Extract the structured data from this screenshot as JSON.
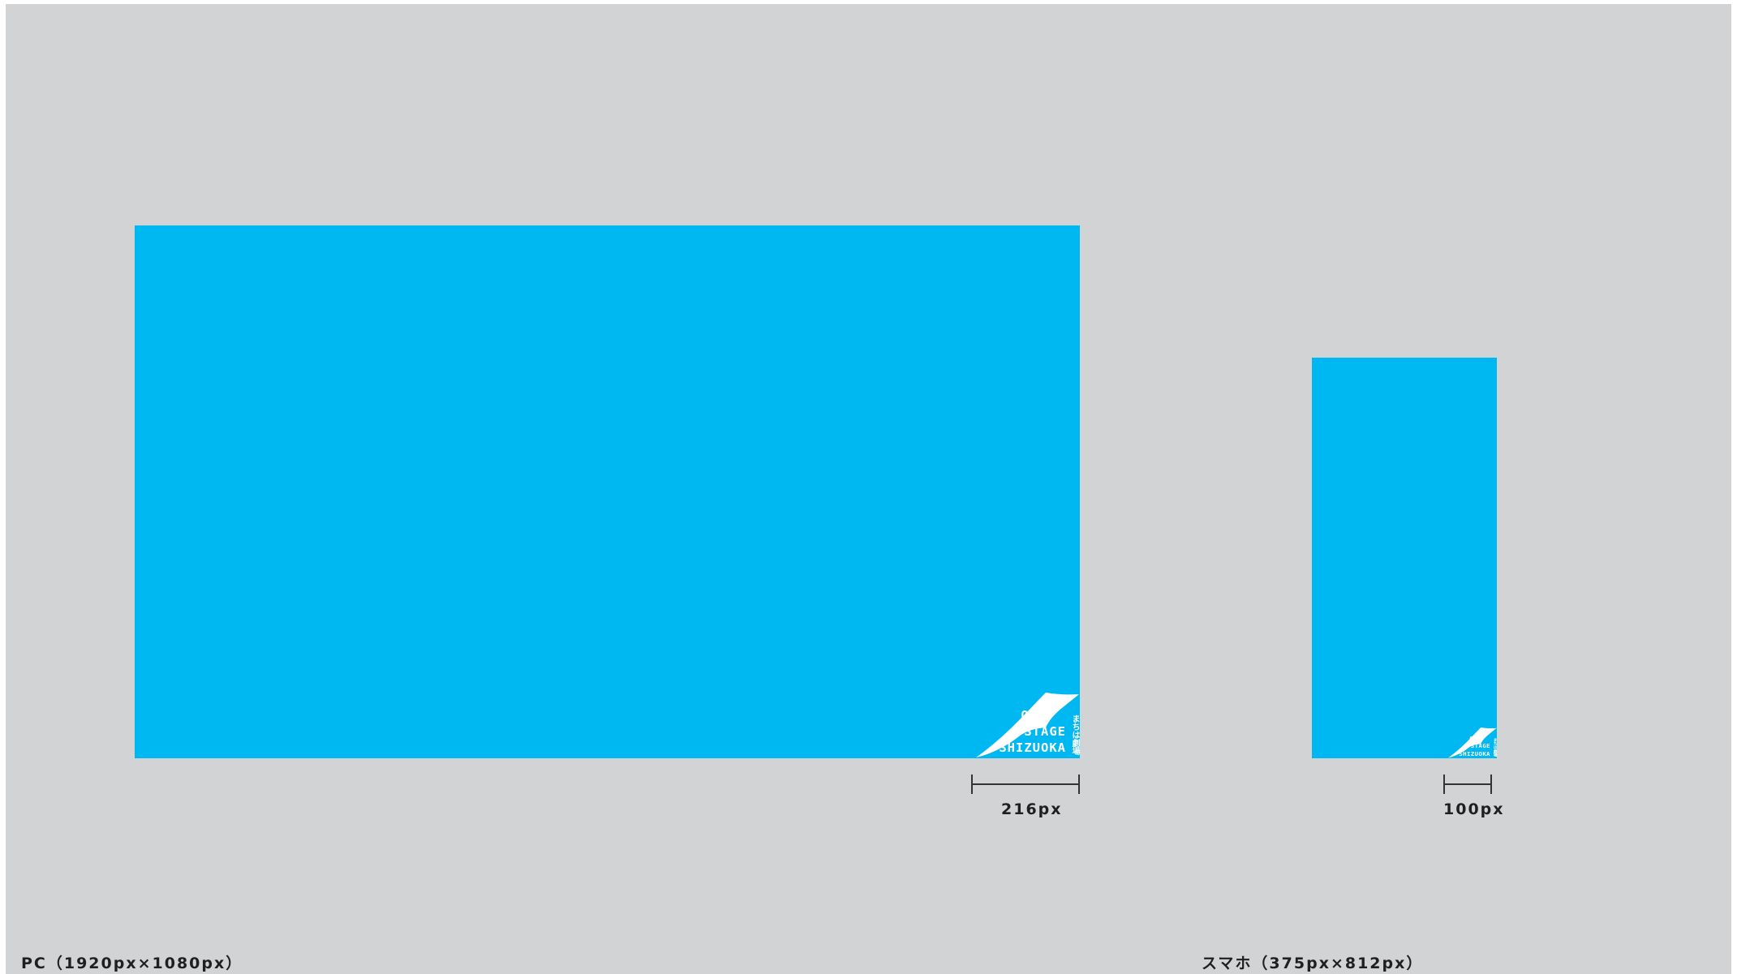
{
  "colors": {
    "background": "#d1d3d5",
    "screen": "#00b8f1",
    "logo": "#ffffff",
    "text": "#1f1f1f"
  },
  "pc": {
    "caption": "PC（1920px×1080px）",
    "logo_width_label": "216px"
  },
  "smartphone": {
    "caption": "スマホ（375px×812px）",
    "logo_width_label": "100px"
  },
  "logo": {
    "line1": "ON",
    "line2": "STAGE",
    "line3": "SHIZUOKA",
    "tagline": "まちは劇場",
    "icon": "page-curl-icon"
  }
}
